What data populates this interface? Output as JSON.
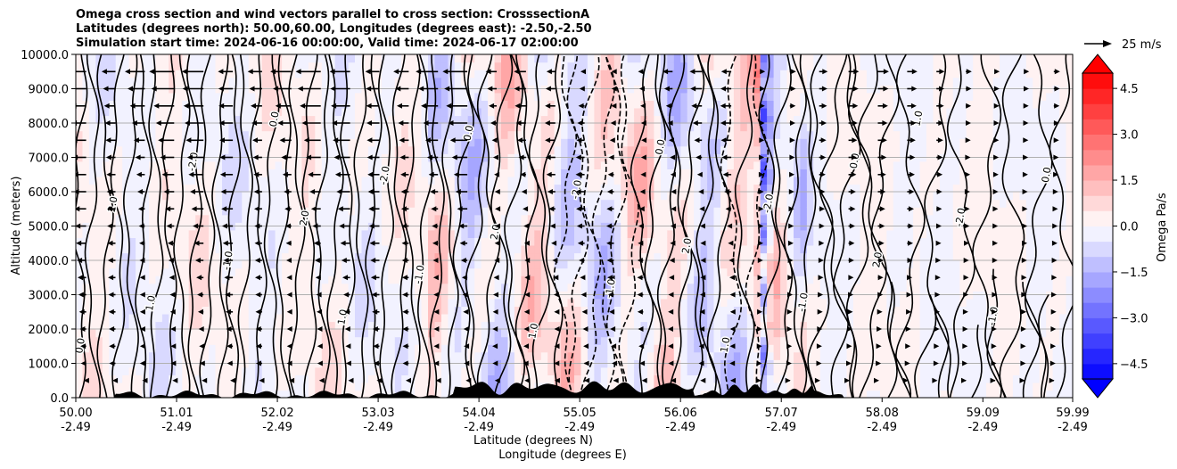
{
  "chart_data": {
    "type": "contour",
    "title_lines": [
      "Omega cross section and wind vectors parallel to cross section: CrosssectionA",
      "Latitudes (degrees north): 50.00,60.00, Longitudes (degrees east): -2.50,-2.50",
      "Simulation start time: 2024-06-16 00:00:00, Valid time: 2024-06-17 02:00:00"
    ],
    "xlabel_line1": "Latitude (degrees N)",
    "xlabel_line2": "Longitude (degrees E)",
    "ylabel": "Altitude (meters)",
    "x_range": [
      50.0,
      59.99
    ],
    "y_range": [
      0,
      10000
    ],
    "x_ticks": [
      {
        "lat": "50.00",
        "lon": "-2.49",
        "value": 50.0
      },
      {
        "lat": "51.01",
        "lon": "-2.49",
        "value": 51.01
      },
      {
        "lat": "52.02",
        "lon": "-2.49",
        "value": 52.02
      },
      {
        "lat": "53.03",
        "lon": "-2.49",
        "value": 53.03
      },
      {
        "lat": "54.04",
        "lon": "-2.49",
        "value": 54.04
      },
      {
        "lat": "55.05",
        "lon": "-2.49",
        "value": 55.05
      },
      {
        "lat": "56.06",
        "lon": "-2.49",
        "value": 56.06
      },
      {
        "lat": "57.07",
        "lon": "-2.49",
        "value": 57.07
      },
      {
        "lat": "58.08",
        "lon": "-2.49",
        "value": 58.08
      },
      {
        "lat": "59.09",
        "lon": "-2.49",
        "value": 59.09
      },
      {
        "lat": "59.99",
        "lon": "-2.49",
        "value": 59.99
      }
    ],
    "y_ticks": [
      {
        "label": "0.0",
        "value": 0
      },
      {
        "label": "1000.0",
        "value": 1000
      },
      {
        "label": "2000.0",
        "value": 2000
      },
      {
        "label": "3000.0",
        "value": 3000
      },
      {
        "label": "4000.0",
        "value": 4000
      },
      {
        "label": "5000.0",
        "value": 5000
      },
      {
        "label": "6000.0",
        "value": 6000
      },
      {
        "label": "7000.0",
        "value": 7000
      },
      {
        "label": "8000.0",
        "value": 8000
      },
      {
        "label": "9000.0",
        "value": 9000
      },
      {
        "label": "10000.0",
        "value": 10000
      }
    ],
    "colorbar": {
      "label": "Omega Pa/s",
      "range": [
        -5.0,
        5.0
      ],
      "ticks": [
        {
          "label": "4.5",
          "value": 4.5
        },
        {
          "label": "3.0",
          "value": 3.0
        },
        {
          "label": "1.5",
          "value": 1.5
        },
        {
          "label": "0.0",
          "value": 0.0
        },
        {
          "label": "−1.5",
          "value": -1.5
        },
        {
          "label": "−3.0",
          "value": -3.0
        },
        {
          "label": "−4.5",
          "value": -4.5
        }
      ],
      "levels": 20,
      "positive_color": "#ff0000",
      "negative_color": "#0000ff",
      "neutral_color": "#ffffff"
    },
    "wind_key": {
      "label": "25 m/s",
      "speed": 25
    },
    "contour_labels": [
      "0.0",
      "1.0",
      "-1.0",
      "2.0",
      "-2.0"
    ],
    "strong_descent_lat": 56.9,
    "terrain_color": "#000000"
  }
}
